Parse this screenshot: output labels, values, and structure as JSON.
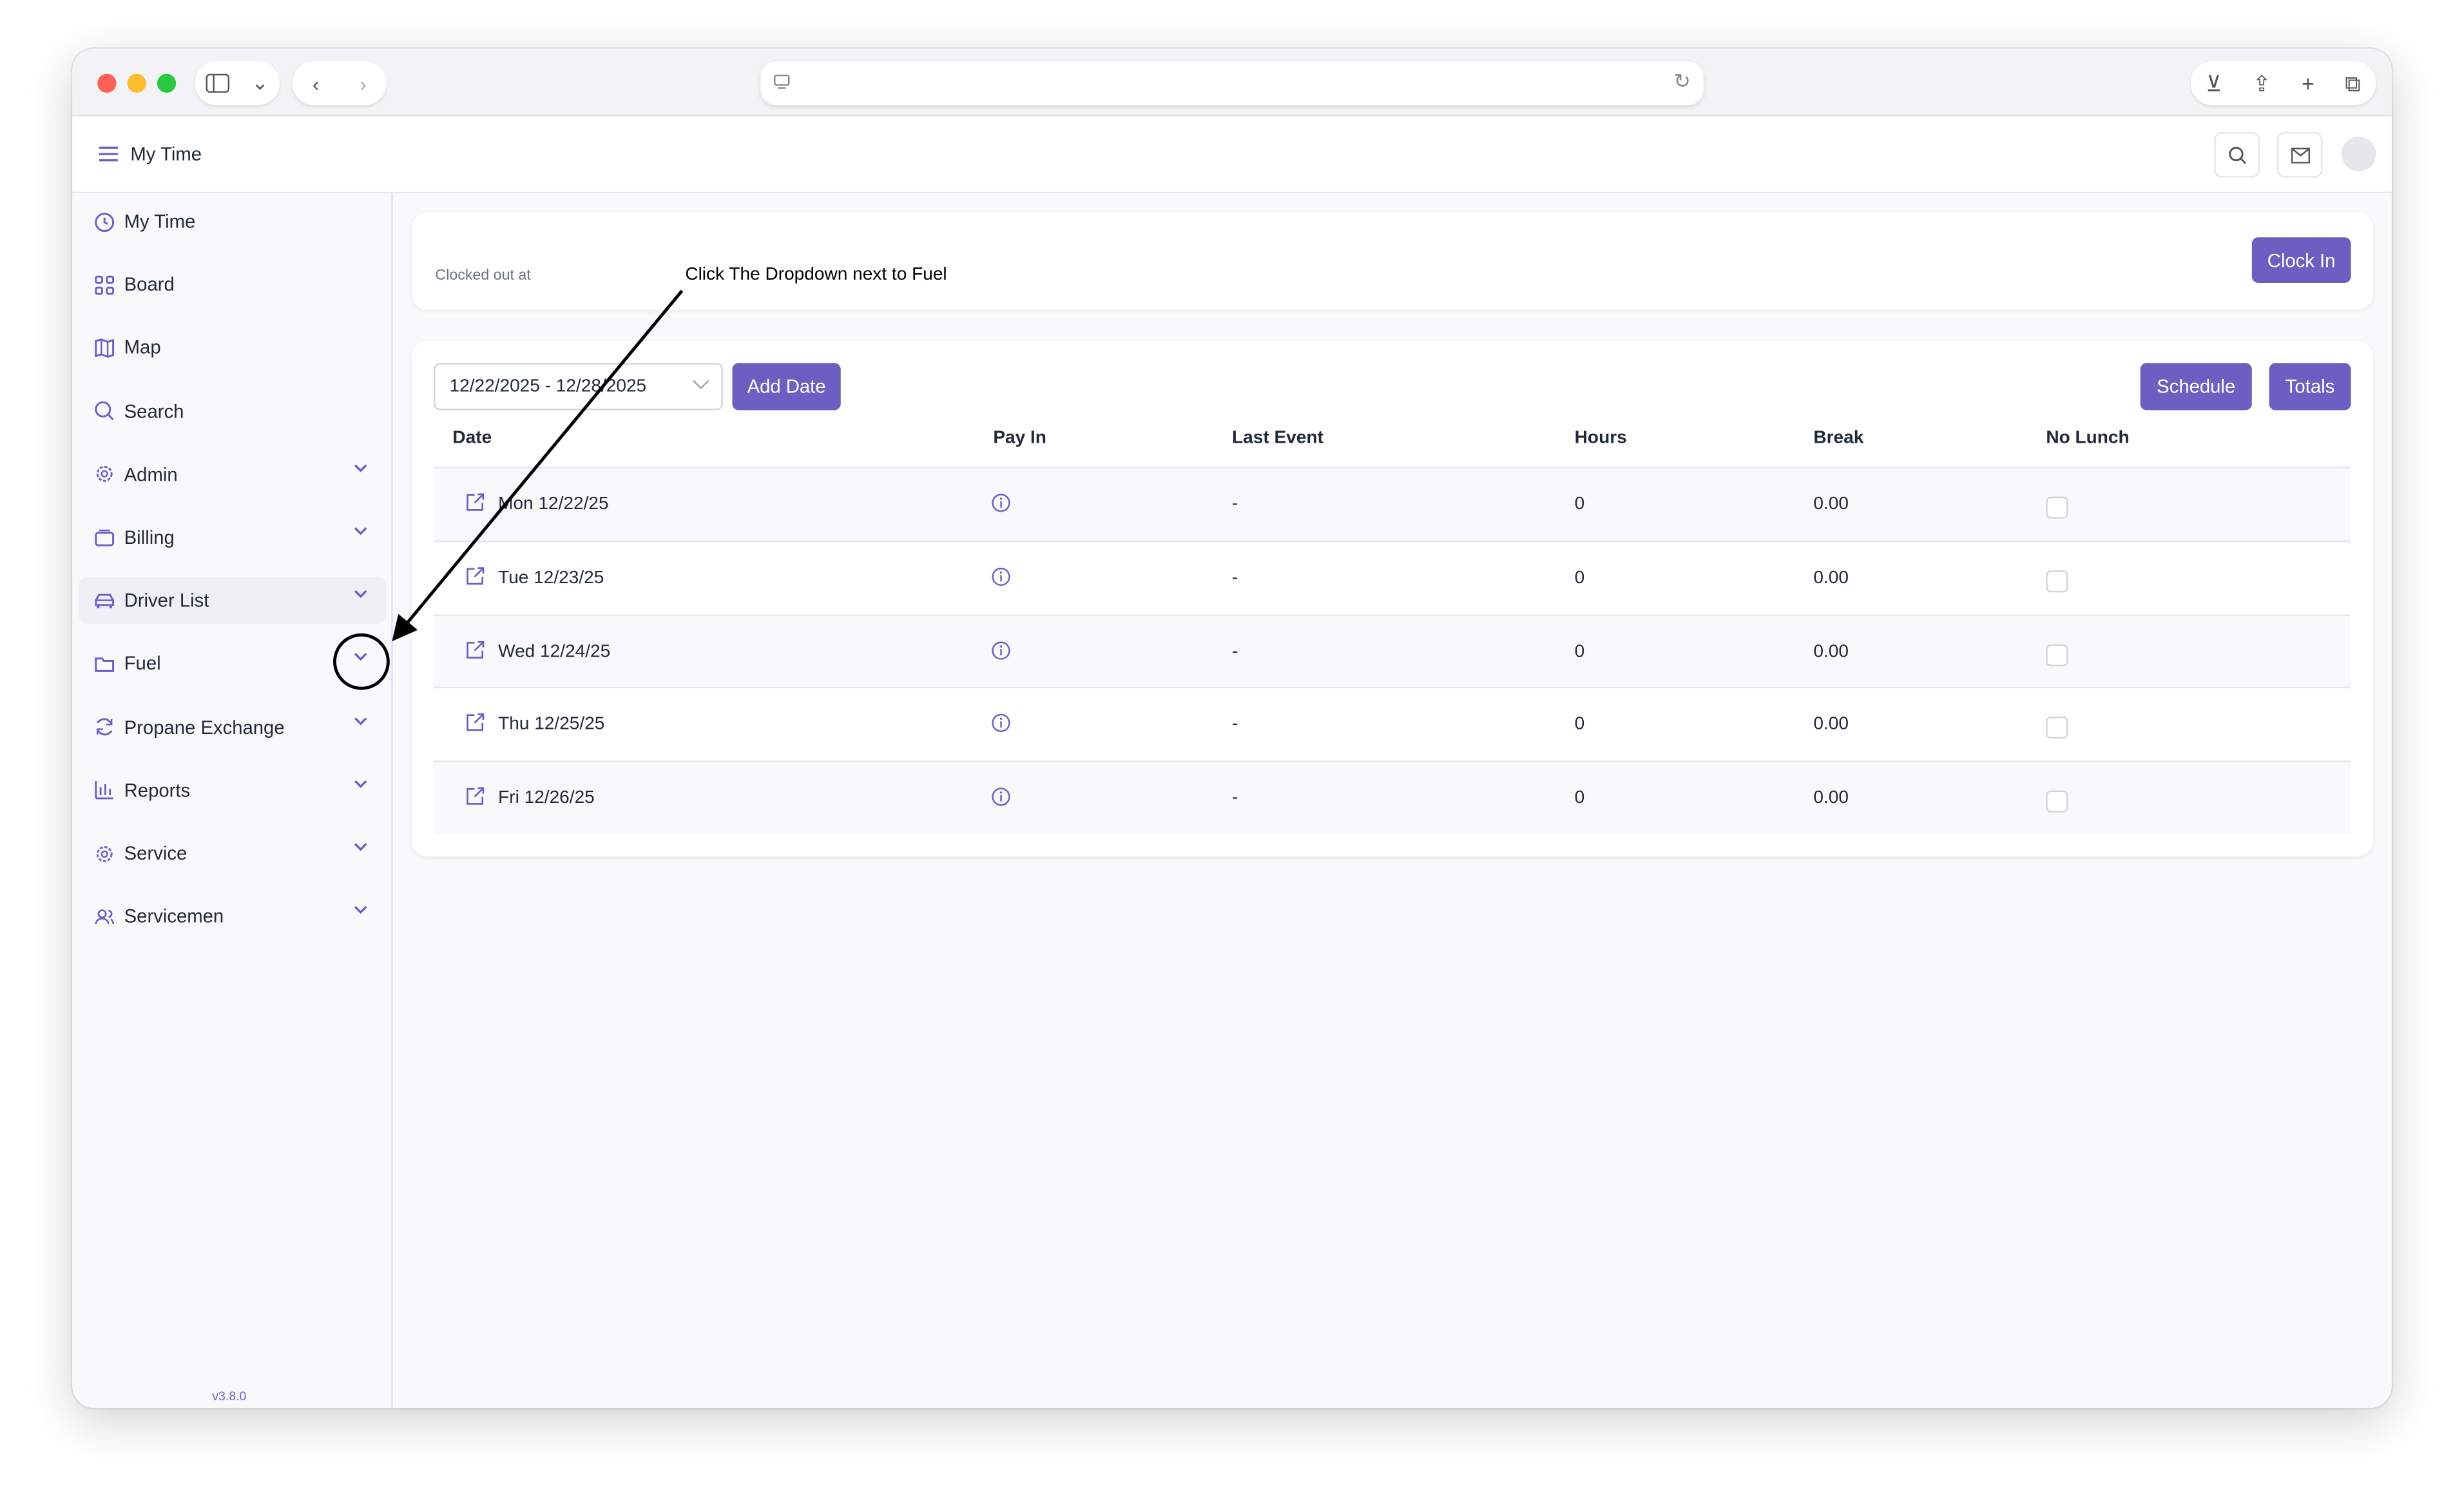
{
  "app": {
    "title": "My Time",
    "version": "v3.8.0",
    "accent": "#6b5fc2"
  },
  "sidebar": {
    "items": [
      {
        "label": "My Time",
        "icon": "clock-icon",
        "dropdown": false
      },
      {
        "label": "Board",
        "icon": "grid-icon",
        "dropdown": false
      },
      {
        "label": "Map",
        "icon": "map-icon",
        "dropdown": false
      },
      {
        "label": "Search",
        "icon": "search-icon",
        "dropdown": false
      },
      {
        "label": "Admin",
        "icon": "gear-icon",
        "dropdown": true
      },
      {
        "label": "Billing",
        "icon": "wallet-icon",
        "dropdown": true
      },
      {
        "label": "Driver List",
        "icon": "car-icon",
        "dropdown": true
      },
      {
        "label": "Fuel",
        "icon": "folder-icon",
        "dropdown": true
      },
      {
        "label": "Propane Exchange",
        "icon": "refresh-icon",
        "dropdown": true
      },
      {
        "label": "Reports",
        "icon": "bar-chart-icon",
        "dropdown": true
      },
      {
        "label": "Service",
        "icon": "gear-icon",
        "dropdown": true
      },
      {
        "label": "Servicemen",
        "icon": "users-icon",
        "dropdown": true
      }
    ]
  },
  "clock": {
    "status": "Clocked out at",
    "clock_in": "Clock In"
  },
  "annotation": {
    "text": "Click The Dropdown next to Fuel"
  },
  "toolbar": {
    "date_range": "12/22/2025 - 12/28/2025",
    "add_date": "Add Date",
    "schedule": "Schedule",
    "totals": "Totals"
  },
  "table": {
    "headers": [
      "Date",
      "Pay In",
      "Last Event",
      "Hours",
      "Break",
      "No Lunch"
    ],
    "rows": [
      {
        "date": "Mon 12/22/25",
        "last_event": "-",
        "hours": "0",
        "break": "0.00",
        "no_lunch": false
      },
      {
        "date": "Tue 12/23/25",
        "last_event": "-",
        "hours": "0",
        "break": "0.00",
        "no_lunch": false
      },
      {
        "date": "Wed 12/24/25",
        "last_event": "-",
        "hours": "0",
        "break": "0.00",
        "no_lunch": false
      },
      {
        "date": "Thu 12/25/25",
        "last_event": "-",
        "hours": "0",
        "break": "0.00",
        "no_lunch": false
      },
      {
        "date": "Fri 12/26/25",
        "last_event": "-",
        "hours": "0",
        "break": "0.00",
        "no_lunch": false
      }
    ]
  }
}
